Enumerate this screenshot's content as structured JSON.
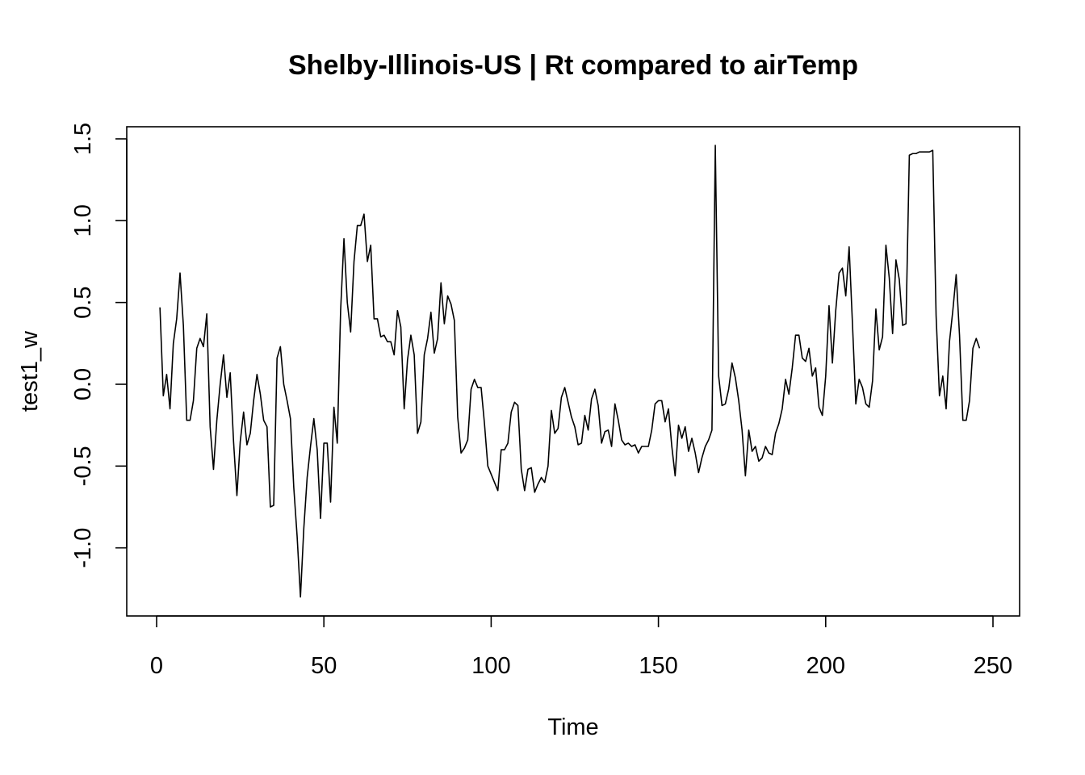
{
  "chart_data": {
    "type": "line",
    "title": "Shelby-Illinois-US | Rt compared to airTemp",
    "xlabel": "Time",
    "ylabel": "test1_w",
    "xlim": [
      1,
      248
    ],
    "ylim": [
      -1.3,
      1.47
    ],
    "x_ticks": [
      0,
      50,
      100,
      150,
      200,
      250
    ],
    "x_tick_labels": [
      "0",
      "50",
      "100",
      "150",
      "200",
      "250"
    ],
    "y_ticks": [
      -1.0,
      -0.5,
      0.0,
      0.5,
      1.0,
      1.5
    ],
    "y_tick_labels": [
      "-1.0",
      "-0.5",
      "0.0",
      "0.5",
      "1.0",
      "1.5"
    ],
    "grid": false,
    "series": [
      {
        "color": "#000000",
        "values": [
          0.47,
          -0.07,
          0.06,
          -0.15,
          0.25,
          0.4,
          0.68,
          0.36,
          -0.22,
          -0.22,
          -0.1,
          0.22,
          0.28,
          0.23,
          0.43,
          -0.26,
          -0.52,
          -0.22,
          0.0,
          0.18,
          -0.08,
          0.07,
          -0.35,
          -0.68,
          -0.35,
          -0.17,
          -0.37,
          -0.3,
          -0.1,
          0.06,
          -0.06,
          -0.22,
          -0.26,
          -0.75,
          -0.74,
          0.16,
          0.23,
          0.0,
          -0.1,
          -0.21,
          -0.63,
          -0.93,
          -1.3,
          -0.88,
          -0.57,
          -0.38,
          -0.21,
          -0.4,
          -0.82,
          -0.36,
          -0.36,
          -0.72,
          -0.14,
          -0.36,
          0.45,
          0.89,
          0.5,
          0.32,
          0.75,
          0.97,
          0.97,
          1.04,
          0.75,
          0.85,
          0.4,
          0.4,
          0.29,
          0.3,
          0.26,
          0.26,
          0.18,
          0.45,
          0.35,
          -0.15,
          0.15,
          0.3,
          0.18,
          -0.3,
          -0.23,
          0.18,
          0.28,
          0.44,
          0.19,
          0.28,
          0.62,
          0.37,
          0.54,
          0.49,
          0.39,
          -0.2,
          -0.42,
          -0.39,
          -0.34,
          -0.03,
          0.03,
          -0.02,
          -0.02,
          -0.24,
          -0.5,
          -0.55,
          -0.6,
          -0.65,
          -0.4,
          -0.4,
          -0.36,
          -0.17,
          -0.11,
          -0.13,
          -0.52,
          -0.65,
          -0.52,
          -0.51,
          -0.66,
          -0.61,
          -0.57,
          -0.6,
          -0.5,
          -0.16,
          -0.3,
          -0.27,
          -0.08,
          -0.02,
          -0.11,
          -0.2,
          -0.26,
          -0.37,
          -0.36,
          -0.19,
          -0.28,
          -0.09,
          -0.03,
          -0.13,
          -0.36,
          -0.29,
          -0.28,
          -0.38,
          -0.12,
          -0.22,
          -0.34,
          -0.37,
          -0.36,
          -0.38,
          -0.37,
          -0.42,
          -0.38,
          -0.38,
          -0.38,
          -0.28,
          -0.12,
          -0.1,
          -0.1,
          -0.23,
          -0.15,
          -0.38,
          -0.56,
          -0.25,
          -0.33,
          -0.26,
          -0.41,
          -0.33,
          -0.42,
          -0.54,
          -0.45,
          -0.38,
          -0.34,
          -0.28,
          1.46,
          0.05,
          -0.13,
          -0.12,
          -0.03,
          0.13,
          0.04,
          -0.1,
          -0.28,
          -0.56,
          -0.28,
          -0.41,
          -0.38,
          -0.47,
          -0.45,
          -0.38,
          -0.42,
          -0.43,
          -0.3,
          -0.24,
          -0.15,
          0.03,
          -0.06,
          0.1,
          0.3,
          0.3,
          0.16,
          0.14,
          0.22,
          0.05,
          0.1,
          -0.14,
          -0.19,
          0.05,
          0.48,
          0.13,
          0.45,
          0.68,
          0.71,
          0.54,
          0.84,
          0.37,
          -0.12,
          0.03,
          -0.02,
          -0.12,
          -0.14,
          0.02,
          0.46,
          0.21,
          0.29,
          0.85,
          0.65,
          0.31,
          0.76,
          0.64,
          0.36,
          0.37,
          1.4,
          1.41,
          1.41,
          1.42,
          1.42,
          1.42,
          1.42,
          1.43,
          0.42,
          -0.07,
          0.05,
          -0.15,
          0.26,
          0.45,
          0.67,
          0.3,
          -0.22,
          -0.22,
          -0.1,
          0.22,
          0.28,
          0.22
        ]
      }
    ]
  }
}
